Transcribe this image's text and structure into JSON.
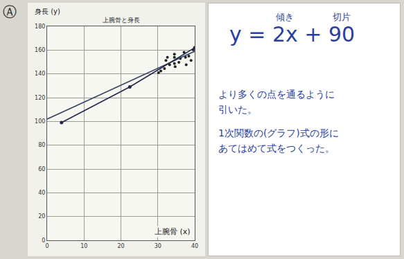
{
  "chart_data": {
    "type": "scatter",
    "title": "上腕骨と身長",
    "x_label": "上腕骨 (x)",
    "y_label": "身長 (y)",
    "xlim": [
      0,
      40
    ],
    "ylim": [
      0,
      180
    ],
    "xticks": [
      0,
      10,
      20,
      30,
      40
    ],
    "yticks": [
      0,
      20,
      40,
      60,
      80,
      100,
      120,
      140,
      160,
      180
    ],
    "grid": true,
    "series": [
      {
        "type": "scatter",
        "color": "#222222",
        "marker": "circle",
        "x": [
          30.2,
          30.8,
          31.8,
          32.2,
          32.6,
          33.2,
          34.5,
          34.5,
          34.5,
          34.7,
          35.7,
          36.1,
          37.1,
          37.5,
          37.7,
          38.4,
          39.0,
          39.6
        ],
        "values": [
          140.9,
          142.4,
          144.5,
          151.3,
          153.9,
          147.7,
          156.5,
          153.9,
          148.7,
          146.1,
          149.7,
          152.9,
          158.1,
          153.9,
          147.7,
          155.0,
          151.3,
          160.2
        ]
      },
      {
        "type": "line",
        "color": "#3a4560",
        "line_style": "solid",
        "x": [
          0,
          40
        ],
        "values": [
          102,
          159
        ]
      },
      {
        "type": "line",
        "color": "#1f2a48",
        "line_style": "solid",
        "marker": "circle",
        "x": [
          3.9,
          22.4,
          40
        ],
        "values": [
          99,
          129,
          162
        ]
      }
    ]
  },
  "label": "Ⓐ",
  "whiteboard": {
    "equation": [
      {
        "text": "y = "
      },
      {
        "text": "2x",
        "label": "傾き"
      },
      {
        "text": " + "
      },
      {
        "text": "90",
        "label": "切片"
      }
    ],
    "notes": [
      [
        "より多くの点を通るように",
        "引いた。"
      ],
      [
        "1次関数の(グラフ)式の形に",
        "あてはめて式をつくった。"
      ]
    ]
  }
}
